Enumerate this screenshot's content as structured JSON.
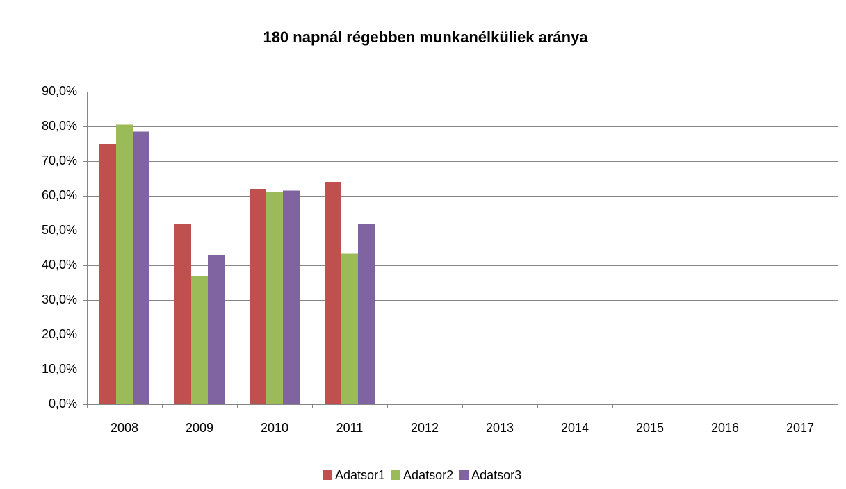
{
  "chart_data": {
    "type": "bar",
    "title": "180 napnál régebben munkanélküliek aránya",
    "categories": [
      "2008",
      "2009",
      "2010",
      "2011",
      "2012",
      "2013",
      "2014",
      "2015",
      "2016",
      "2017"
    ],
    "series": [
      {
        "name": "Adatsor1",
        "color": "#c0504d",
        "values": [
          75.0,
          52.0,
          62.0,
          64.0,
          null,
          null,
          null,
          null,
          null,
          null
        ]
      },
      {
        "name": "Adatsor2",
        "color": "#9bbb59",
        "values": [
          80.5,
          36.8,
          61.2,
          43.5,
          null,
          null,
          null,
          null,
          null,
          null
        ]
      },
      {
        "name": "Adatsor3",
        "color": "#8064a2",
        "values": [
          78.5,
          43.0,
          61.5,
          52.0,
          null,
          null,
          null,
          null,
          null,
          null
        ]
      }
    ],
    "ylim": [
      0,
      90
    ],
    "yticks": [
      {
        "value": 0,
        "label": "0,0%"
      },
      {
        "value": 10,
        "label": "10,0%"
      },
      {
        "value": 20,
        "label": "20,0%"
      },
      {
        "value": 30,
        "label": "30,0%"
      },
      {
        "value": 40,
        "label": "40,0%"
      },
      {
        "value": 50,
        "label": "50,0%"
      },
      {
        "value": 60,
        "label": "60,0%"
      },
      {
        "value": 70,
        "label": "70,0%"
      },
      {
        "value": 80,
        "label": "80,0%"
      },
      {
        "value": 90,
        "label": "90,0%"
      }
    ],
    "grid": true,
    "legend": "bottom"
  }
}
